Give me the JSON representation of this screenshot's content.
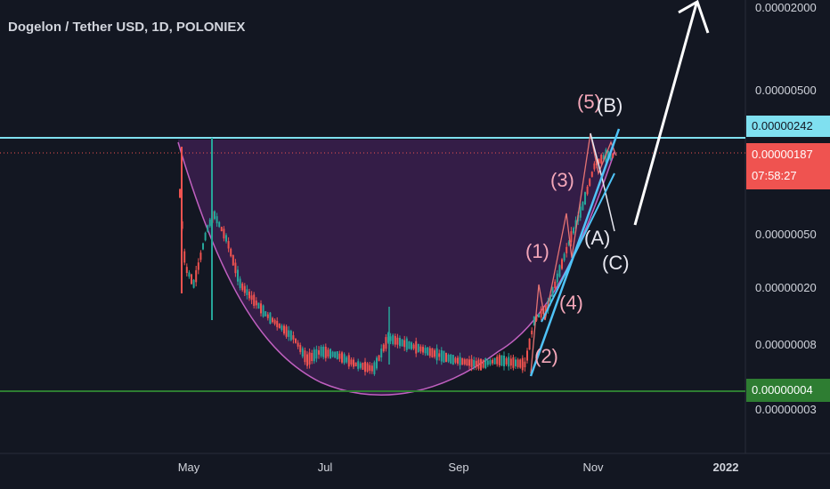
{
  "header": {
    "title": "Dogelon / Tether USD, 1D, POLONIEX"
  },
  "colors": {
    "background": "#131722",
    "up": "#26a69a",
    "down": "#ef5350",
    "resistance": "#7fe0f0",
    "support": "#2e7d32",
    "cup_fill": "#3b1f4d",
    "cup_curve": "#c060c0",
    "wave_labels": "#f4a7b9",
    "abc_labels": "#e8e8f0",
    "channel": "#4fc3f7",
    "arrow": "#ffffff"
  },
  "chart_data": {
    "type": "candlestick",
    "title": "Dogelon / Tether USD, 1D, POLONIEX",
    "y_scale": "log",
    "x_ticks": [
      "May",
      "Jul",
      "Sep",
      "Nov",
      "2022"
    ],
    "y_ticks": [
      "0.00002000",
      "0.00000500",
      "0.00000050",
      "0.00000020",
      "0.00000008",
      "0.00000003"
    ],
    "price_labels": {
      "resistance": "0.00000242",
      "current": "0.00000187",
      "countdown": "07:58:27",
      "support": "0.00000004"
    },
    "levels": {
      "resistance": 2.42e-06,
      "current": 1.87e-06,
      "support": 4e-08
    },
    "annotations": {
      "wave_labels": [
        "(1)",
        "(2)",
        "(3)",
        "(4)",
        "(5)"
      ],
      "abc_labels": [
        "(A)",
        "(B)",
        "(C)"
      ],
      "pattern": "cup"
    }
  }
}
